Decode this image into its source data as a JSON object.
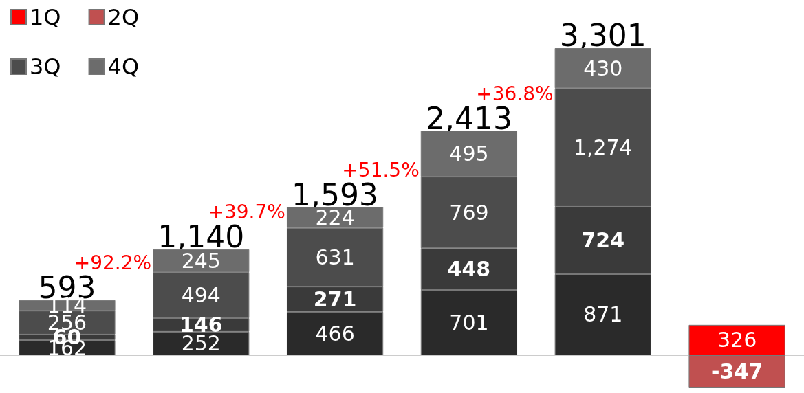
{
  "chart_data": {
    "type": "bar",
    "stacked": true,
    "categories": [
      null,
      null,
      null,
      null,
      null,
      null
    ],
    "series": [
      {
        "name": "1Q",
        "color": "#ff0000",
        "colors": [
          "#2a2a2a",
          "#2a2a2a",
          "#2a2a2a",
          "#2a2a2a",
          "#2a2a2a",
          "#ff0000"
        ],
        "values": [
          162,
          252,
          466,
          701,
          871,
          326
        ],
        "value_labels": [
          "162",
          "252",
          "466",
          "701",
          "871",
          "326"
        ]
      },
      {
        "name": "2Q",
        "color": "#c05050",
        "colors": [
          "#3a3a3a",
          "#3a3a3a",
          "#3a3a3a",
          "#3a3a3a",
          "#3a3a3a",
          "#c05050"
        ],
        "values": [
          60,
          146,
          271,
          448,
          724,
          -347
        ],
        "value_labels": [
          "60",
          "146",
          "271",
          "448",
          "724",
          "-347"
        ]
      },
      {
        "name": "3Q",
        "color": "#4c4c4c",
        "values": [
          256,
          494,
          631,
          769,
          1274,
          null
        ],
        "value_labels": [
          "256",
          "494",
          "631",
          "769",
          "1,274",
          null
        ]
      },
      {
        "name": "4Q",
        "color": "#6c6c6c",
        "values": [
          114,
          245,
          224,
          495,
          430,
          null
        ],
        "value_labels": [
          "114",
          "245",
          "224",
          "495",
          "430",
          null
        ]
      }
    ],
    "annotations": [
      {
        "text": "593",
        "y": 593
      },
      {
        "text": "1,140",
        "y": 1140
      },
      {
        "text": "1,593",
        "y": 1593
      },
      {
        "text": "2,413",
        "y": 2413
      },
      {
        "text": "3,301",
        "y": 3301
      },
      "+92.2%",
      "+39.7%",
      "+51.5%",
      "+36.8%"
    ],
    "legend": "top left"
  }
}
